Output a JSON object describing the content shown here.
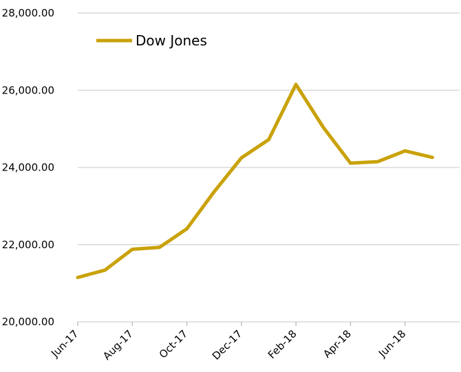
{
  "chart_data": {
    "type": "line",
    "title": "",
    "xlabel": "",
    "ylabel": "",
    "ylim": [
      20000,
      28000
    ],
    "y_ticks": [
      "20,000.00",
      "22,000.00",
      "24,000.00",
      "26,000.00",
      "28,000.00"
    ],
    "y_tick_values": [
      20000,
      22000,
      24000,
      26000,
      28000
    ],
    "x_tick_labels": [
      "Jun-17",
      "Aug-17",
      "Oct-17",
      "Dec-17",
      "Feb-18",
      "Apr-18",
      "Jun-18"
    ],
    "categories": [
      "2017-06-01",
      "2017-07-01",
      "2017-08-01",
      "2017-09-01",
      "2017-10-01",
      "2017-11-01",
      "2017-12-01",
      "2018-01-01",
      "2018-02-01",
      "2018-03-01",
      "2018-04-01",
      "2018-05-01",
      "2018-06-01",
      "2018-07-01"
    ],
    "series": [
      {
        "name": "Dow Jones",
        "values": [
          21150,
          21340,
          21880,
          21930,
          22410,
          23370,
          24250,
          24720,
          26150,
          25040,
          24110,
          24150,
          24430,
          24260
        ],
        "color": "#C9A20A"
      }
    ],
    "grid": true,
    "legend_position": "top-left"
  }
}
